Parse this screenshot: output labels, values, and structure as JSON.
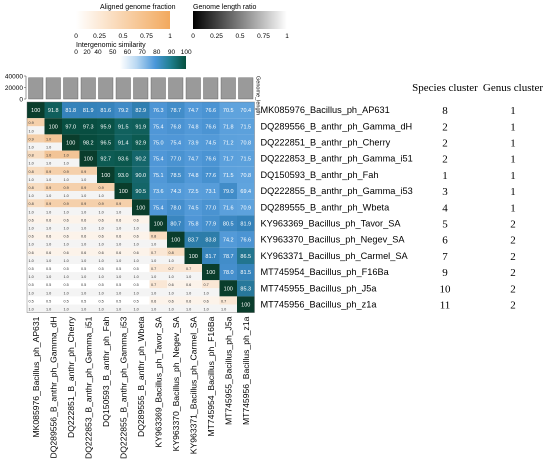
{
  "legends": {
    "aligned_title": "Aligned genome fraction",
    "aligned_ticks": [
      "0",
      "0.25",
      "0.5",
      "0.75",
      "1"
    ],
    "length_title": "Genome length ratio",
    "length_ticks": [
      "0",
      "0.25",
      "0.5",
      "0.75",
      "1"
    ],
    "similarity_title": "Intergenomic similarity",
    "similarity_ticks": [
      "0",
      "20",
      "40",
      "50",
      "60",
      "70",
      "80",
      "90",
      "100"
    ],
    "colors": {
      "aligned": "#f2a95e",
      "length": "#000000",
      "similarity_high": "#054f3e",
      "similarity_mid": "#4a97d9"
    }
  },
  "bar_axis": {
    "ticks": [
      "40000",
      "20000",
      "0"
    ],
    "label": "Genome_length"
  },
  "table_headers": {
    "species": "Species cluster",
    "genus": "Genus cluster"
  },
  "chart_data": {
    "type": "heatmap",
    "genomes": [
      "MK085976_Bacillus_ph_AP631",
      "DQ289556_B_anthr_ph_Gamma_dH",
      "DQ222851_B_anthr_ph_Cherry",
      "DQ222853_B_anthr_ph_Gamma_i51",
      "DQ150593_B_anthr_ph_Fah",
      "DQ222855_B_anthr_ph_Gamma_i53",
      "DQ289555_B_anthr_ph_Wbeta",
      "KY963369_Bacillus_ph_Tavor_SA",
      "KY963370_Bacillus_ph_Negev_SA",
      "KY963371_Bacillus_ph_Carmel_SA",
      "MT745954_Bacillus_ph_F16Ba",
      "MT745955_Bacillus_ph_J5a",
      "MT745956_Bacillus_ph_z1a"
    ],
    "species_cluster": [
      "8",
      "2",
      "2",
      "2",
      "1",
      "3",
      "4",
      "5",
      "6",
      "7",
      "9",
      "10",
      "11"
    ],
    "genus_cluster": [
      "1",
      "1",
      "1",
      "1",
      "1",
      "1",
      "1",
      "2",
      "2",
      "2",
      "2",
      "2",
      "2"
    ],
    "genome_length_bar_values": [
      37000,
      37000,
      37000,
      37000,
      37000,
      37000,
      37000,
      37000,
      37000,
      37000,
      37000,
      37000,
      37000
    ],
    "diagonal": [
      "100",
      "100",
      "100",
      "100",
      "100",
      "100",
      "100",
      "100",
      "100",
      "100",
      "100",
      "100",
      "100"
    ],
    "upper": [
      [
        "91.8",
        "81.8",
        "81.9",
        "81.6",
        "79.2",
        "82.9",
        "76.3",
        "78.7",
        "74.7",
        "76.6",
        "70.5",
        "70.4"
      ],
      [
        "97.0",
        "97.3",
        "95.9",
        "91.5",
        "91.9",
        "75.4",
        "76.8",
        "74.8",
        "76.6",
        "71.8",
        "71.5"
      ],
      [
        "98.2",
        "96.5",
        "91.4",
        "92.9",
        "75.0",
        "75.4",
        "73.9",
        "74.5",
        "71.2",
        "70.8"
      ],
      [
        "92.7",
        "93.6",
        "90.2",
        "75.4",
        "77.0",
        "74.7",
        "76.6",
        "71.7",
        "71.5"
      ],
      [
        "93.0",
        "90.0",
        "75.1",
        "78.5",
        "74.8",
        "77.6",
        "71.5",
        "70.8"
      ],
      [
        "90.5",
        "73.6",
        "74.3",
        "72.5",
        "73.1",
        "79.0",
        "69.4"
      ],
      [
        "75.4",
        "78.0",
        "74.5",
        "77.0",
        "71.6",
        "70.9"
      ],
      [
        "80.7",
        "75.8",
        "77.9",
        "80.5",
        "81.9"
      ],
      [
        "83.7",
        "83.8",
        "74.2",
        "76.6"
      ],
      [
        "81.7",
        "78.7",
        "86.5"
      ],
      [
        "78.0",
        "81.5"
      ],
      [
        "85.3"
      ]
    ],
    "lower_aligned": [
      [
        "0.9"
      ],
      [
        "0.9",
        "1.0"
      ],
      [
        "0.8",
        "1.0",
        "1.0"
      ],
      [
        "0.8",
        "0.9",
        "0.9",
        "0.9"
      ],
      [
        "0.8",
        "0.9",
        "0.9",
        "0.9",
        "0.9"
      ],
      [
        "0.8",
        "0.9",
        "0.9",
        "0.9",
        "0.9",
        "0.9"
      ],
      [
        "0.6",
        "0.6",
        "0.6",
        "0.6",
        "0.6",
        "0.6",
        "0.6"
      ],
      [
        "0.6",
        "0.6",
        "0.6",
        "0.6",
        "0.6",
        "0.6",
        "0.6",
        "0.8"
      ],
      [
        "0.6",
        "0.6",
        "0.6",
        "0.6",
        "0.6",
        "0.6",
        "0.6",
        "0.7",
        "0.8"
      ],
      [
        "0.5",
        "0.5",
        "0.5",
        "0.5",
        "0.5",
        "0.5",
        "0.5",
        "0.7",
        "0.7",
        "0.7"
      ],
      [
        "0.5",
        "0.5",
        "0.5",
        "0.5",
        "0.5",
        "0.5",
        "0.5",
        "0.7",
        "0.6",
        "0.6",
        "0.7"
      ],
      [
        "0.5",
        "0.5",
        "0.5",
        "0.5",
        "0.5",
        "0.5",
        "0.5",
        "0.6",
        "0.6",
        "0.6",
        "0.6",
        "0.7"
      ]
    ],
    "lower_length": [
      [
        "1.0"
      ],
      [
        "1.0",
        "1.0"
      ],
      [
        "1.0",
        "1.0",
        "1.0"
      ],
      [
        "1.0",
        "1.0",
        "1.0",
        "1.0"
      ],
      [
        "1.0",
        "1.0",
        "1.0",
        "1.0",
        "1.0"
      ],
      [
        "1.0",
        "1.0",
        "1.0",
        "1.0",
        "1.0",
        "1.0"
      ],
      [
        "1.0",
        "1.0",
        "1.0",
        "1.0",
        "1.0",
        "1.0",
        "1.0"
      ],
      [
        "1.0",
        "1.0",
        "1.0",
        "1.0",
        "1.0",
        "1.0",
        "1.0",
        "1.0"
      ],
      [
        "1.0",
        "1.0",
        "1.0",
        "1.0",
        "1.0",
        "1.0",
        "1.0",
        "1.0",
        "1.0"
      ],
      [
        "1.0",
        "1.0",
        "1.0",
        "1.0",
        "1.0",
        "1.0",
        "1.0",
        "1.0",
        "1.0",
        "1.0"
      ],
      [
        "1.0",
        "1.0",
        "1.0",
        "1.0",
        "1.0",
        "1.0",
        "1.0",
        "1.0",
        "1.0",
        "1.0",
        "1.0"
      ],
      [
        "1.0",
        "1.0",
        "1.0",
        "1.0",
        "1.0",
        "1.0",
        "1.0",
        "1.0",
        "1.0",
        "1.0",
        "1.0",
        "1.0"
      ]
    ]
  }
}
